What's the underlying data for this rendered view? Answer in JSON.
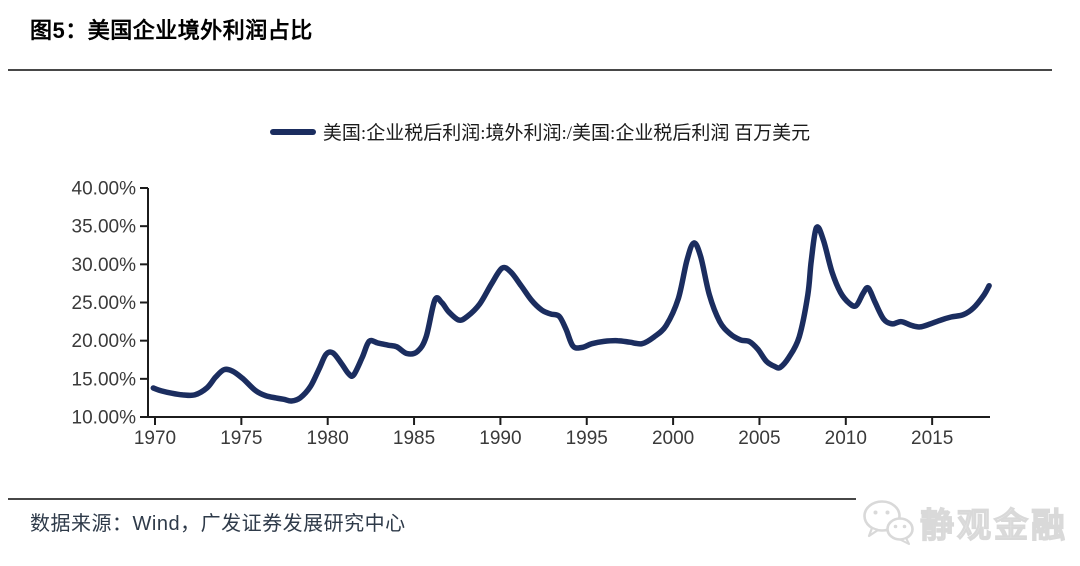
{
  "figure": {
    "title": "图5：美国企业境外利润占比",
    "source": "数据来源：Wind，广发证券发展研究中心",
    "watermark": "静观金融"
  },
  "legend": {
    "label": "美国:企业税后利润:境外利润:/美国:企业税后利润 百万美元"
  },
  "colors": {
    "line": "#1b2d5f",
    "axis": "#1c1c1c",
    "tick_label": "#3a3a3a",
    "separator": "#474747",
    "footer_text": "#2e3a49",
    "watermark": "#dddddd"
  },
  "chart_data": {
    "type": "line",
    "title": "美国企业境外利润占比",
    "series_name": "美国:企业税后利润:境外利润:/美国:企业税后利润 百万美元",
    "xlabel": "",
    "ylabel": "",
    "grid": false,
    "legend_position": "top",
    "ylim": [
      10,
      40
    ],
    "xlim": [
      1969.7,
      2018.6
    ],
    "y_ticks": [
      40,
      35,
      30,
      25,
      20,
      15,
      10
    ],
    "y_tick_labels": [
      "40.00%",
      "35.00%",
      "30.00%",
      "25.00%",
      "20.00%",
      "15.00%",
      "10.00%"
    ],
    "x_ticks": [
      1970,
      1975,
      1980,
      1985,
      1990,
      1995,
      2000,
      2005,
      2010,
      2015
    ],
    "x_tick_labels": [
      "1970",
      "1975",
      "1980",
      "1985",
      "1990",
      "1995",
      "2000",
      "2005",
      "2010",
      "2015"
    ],
    "unit": "%",
    "points": [
      [
        1969.9,
        13.8
      ],
      [
        1970.4,
        13.4
      ],
      [
        1971.0,
        13.1
      ],
      [
        1971.6,
        12.9
      ],
      [
        1972.3,
        12.9
      ],
      [
        1973.0,
        13.8
      ],
      [
        1973.5,
        15.2
      ],
      [
        1974.0,
        16.2
      ],
      [
        1974.5,
        16.0
      ],
      [
        1975.1,
        15.0
      ],
      [
        1975.8,
        13.5
      ],
      [
        1976.4,
        12.8
      ],
      [
        1977.0,
        12.5
      ],
      [
        1977.5,
        12.3
      ],
      [
        1977.9,
        12.1
      ],
      [
        1978.4,
        12.5
      ],
      [
        1979.0,
        14.0
      ],
      [
        1979.5,
        16.3
      ],
      [
        1979.9,
        18.2
      ],
      [
        1980.3,
        18.4
      ],
      [
        1980.8,
        17.0
      ],
      [
        1981.2,
        15.7
      ],
      [
        1981.5,
        15.5
      ],
      [
        1982.0,
        17.8
      ],
      [
        1982.4,
        19.9
      ],
      [
        1982.9,
        19.7
      ],
      [
        1983.5,
        19.4
      ],
      [
        1984.0,
        19.2
      ],
      [
        1984.6,
        18.3
      ],
      [
        1985.2,
        18.6
      ],
      [
        1985.7,
        20.5
      ],
      [
        1986.2,
        25.3
      ],
      [
        1986.6,
        25.0
      ],
      [
        1987.0,
        23.8
      ],
      [
        1987.6,
        22.7
      ],
      [
        1988.1,
        23.2
      ],
      [
        1988.8,
        24.8
      ],
      [
        1989.5,
        27.5
      ],
      [
        1990.1,
        29.5
      ],
      [
        1990.6,
        29.0
      ],
      [
        1991.2,
        27.2
      ],
      [
        1991.8,
        25.3
      ],
      [
        1992.4,
        24.0
      ],
      [
        1992.9,
        23.5
      ],
      [
        1993.4,
        23.2
      ],
      [
        1993.8,
        21.5
      ],
      [
        1994.2,
        19.3
      ],
      [
        1994.7,
        19.1
      ],
      [
        1995.3,
        19.6
      ],
      [
        1996.0,
        19.9
      ],
      [
        1996.8,
        20.0
      ],
      [
        1997.5,
        19.8
      ],
      [
        1998.2,
        19.6
      ],
      [
        1998.9,
        20.5
      ],
      [
        1999.6,
        22.0
      ],
      [
        2000.3,
        25.5
      ],
      [
        2000.8,
        30.5
      ],
      [
        2001.2,
        32.8
      ],
      [
        2001.6,
        31.0
      ],
      [
        2002.1,
        26.0
      ],
      [
        2002.7,
        22.5
      ],
      [
        2003.3,
        20.9
      ],
      [
        2003.9,
        20.1
      ],
      [
        2004.4,
        19.9
      ],
      [
        2004.9,
        18.9
      ],
      [
        2005.4,
        17.3
      ],
      [
        2005.9,
        16.6
      ],
      [
        2006.2,
        16.5
      ],
      [
        2006.7,
        17.8
      ],
      [
        2007.3,
        20.5
      ],
      [
        2007.8,
        26.0
      ],
      [
        2008.0,
        30.5
      ],
      [
        2008.3,
        34.8
      ],
      [
        2008.7,
        33.2
      ],
      [
        2009.2,
        29.0
      ],
      [
        2009.7,
        26.3
      ],
      [
        2010.2,
        24.9
      ],
      [
        2010.6,
        24.6
      ],
      [
        2011.0,
        26.2
      ],
      [
        2011.3,
        26.9
      ],
      [
        2011.7,
        25.0
      ],
      [
        2012.2,
        22.8
      ],
      [
        2012.7,
        22.2
      ],
      [
        2013.2,
        22.5
      ],
      [
        2013.8,
        22.0
      ],
      [
        2014.3,
        21.8
      ],
      [
        2014.9,
        22.2
      ],
      [
        2015.5,
        22.7
      ],
      [
        2016.1,
        23.1
      ],
      [
        2016.8,
        23.4
      ],
      [
        2017.4,
        24.3
      ],
      [
        2018.0,
        26.0
      ],
      [
        2018.3,
        27.2
      ]
    ]
  }
}
